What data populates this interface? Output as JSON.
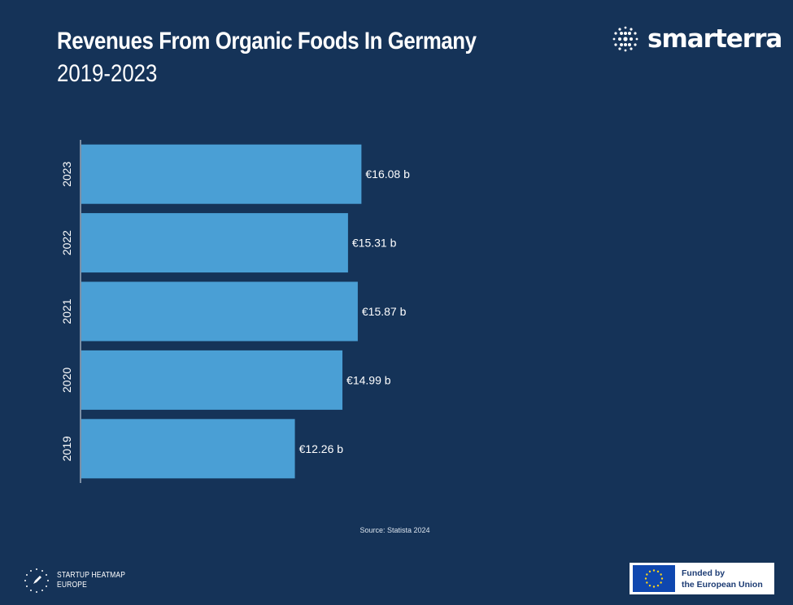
{
  "header": {
    "title": "Revenues From Organic Foods In Germany",
    "subtitle": "2019-2023"
  },
  "brand": {
    "name": "smarterra"
  },
  "source": "Source: Statista 2024",
  "footer": {
    "heatmap_line1": "STARTUP HEATMAP",
    "heatmap_line2": "EUROPE",
    "eu_line1": "Funded by",
    "eu_line2": "the European Union"
  },
  "colors": {
    "background": "#153358",
    "bar": "#4a9fd5",
    "text": "#ffffff"
  },
  "chart_data": {
    "type": "bar",
    "orientation": "horizontal",
    "categories": [
      "2023",
      "2022",
      "2021",
      "2020",
      "2019"
    ],
    "values": [
      16.08,
      15.31,
      15.87,
      14.99,
      12.26
    ],
    "data_labels": [
      "€16.08 b",
      "€15.31 b",
      "€15.87 b",
      "€14.99 b",
      "€12.26 b"
    ],
    "unit": "€ billion",
    "title": "Revenues From Organic Foods In Germany",
    "subtitle": "2019-2023",
    "xlabel": "",
    "ylabel": "",
    "xlim": [
      0,
      36
    ],
    "grid": false,
    "legend": "none"
  }
}
